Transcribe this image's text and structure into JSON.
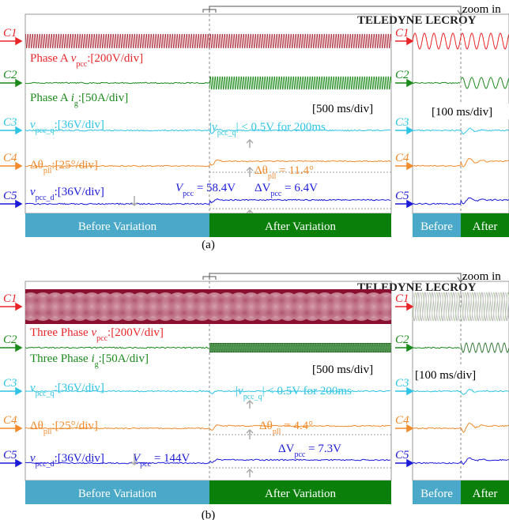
{
  "panels": [
    {
      "caption": "(a)",
      "zoom_label": "zoom in",
      "brand": "TELEDYNE LECROY",
      "timebase": "[500 ms/div]",
      "zoom_timebase": "[100 ms/div]",
      "phases": {
        "before": "Before Variation",
        "after": "After Variation",
        "zoom_before": "Before",
        "zoom_after": "After"
      },
      "channels": [
        {
          "name": "C1",
          "color": "#e8262a",
          "label": [
            {
              "text": "Phase A ",
              "style": "normal"
            },
            {
              "text": "v",
              "style": "italic"
            },
            {
              "text": "pcc",
              "style": "sub"
            },
            {
              "text": ":[200V/div]",
              "style": "normal"
            }
          ]
        },
        {
          "name": "C2",
          "color": "#1a8a1a",
          "label": [
            {
              "text": "Phase A ",
              "style": "normal"
            },
            {
              "text": "i",
              "style": "italic"
            },
            {
              "text": "g",
              "style": "sub"
            },
            {
              "text": ":[50A/div]",
              "style": "normal"
            }
          ]
        },
        {
          "name": "C3",
          "color": "#2ec4e6",
          "label": [
            {
              "text": "v",
              "style": "italic"
            },
            {
              "text": "pcc_q",
              "style": "sub"
            },
            {
              "text": ":[36V/div]",
              "style": "normal"
            }
          ]
        },
        {
          "name": "C4",
          "color": "#f08a2a",
          "label": [
            {
              "text": "Δθ",
              "style": "normal"
            },
            {
              "text": "pll",
              "style": "sub"
            },
            {
              "text": ":[25°/div]",
              "style": "normal"
            }
          ]
        },
        {
          "name": "C5",
          "color": "#1a1ad8",
          "label": [
            {
              "text": "v",
              "style": "italic"
            },
            {
              "text": "pcc_d",
              "style": "sub"
            },
            {
              "text": ":[36V/div]",
              "style": "normal"
            }
          ]
        }
      ],
      "annotations": [
        {
          "color": "#2ec4e6",
          "text": [
            {
              "text": "|",
              "style": "normal"
            },
            {
              "text": "v",
              "style": "italic"
            },
            {
              "text": "pcc_q",
              "style": "sub"
            },
            {
              "text": "| < 0.5V for 200ms",
              "style": "normal"
            }
          ]
        },
        {
          "color": "#f08a2a",
          "text": [
            {
              "text": "Δθ",
              "style": "normal"
            },
            {
              "text": "pll",
              "style": "sub"
            },
            {
              "text": " = 11.4°",
              "style": "normal"
            }
          ]
        },
        {
          "color": "#1a1ad8",
          "text": [
            {
              "text": "V",
              "style": "italic"
            },
            {
              "text": "pcc",
              "style": "sub"
            },
            {
              "text": " = 58.4V",
              "style": "normal"
            }
          ]
        },
        {
          "color": "#1a1ad8",
          "text": [
            {
              "text": "ΔV",
              "style": "normal"
            },
            {
              "text": "pcc",
              "style": "sub"
            },
            {
              "text": " = 6.4V",
              "style": "normal"
            }
          ]
        }
      ]
    },
    {
      "caption": "(b)",
      "zoom_label": "zoom in",
      "brand": "TELEDYNE LECROY",
      "timebase": "[500 ms/div]",
      "zoom_timebase": "[100 ms/div]",
      "phases": {
        "before": "Before Variation",
        "after": "After Variation",
        "zoom_before": "Before",
        "zoom_after": "After"
      },
      "channels": [
        {
          "name": "C1",
          "color": "#e8262a",
          "label": [
            {
              "text": "Three Phase ",
              "style": "normal"
            },
            {
              "text": "v",
              "style": "italic"
            },
            {
              "text": "pcc",
              "style": "sub"
            },
            {
              "text": ":[200V/div]",
              "style": "normal"
            }
          ]
        },
        {
          "name": "C2",
          "color": "#1a8a1a",
          "label": [
            {
              "text": "Three Phase ",
              "style": "normal"
            },
            {
              "text": "i",
              "style": "italic"
            },
            {
              "text": "g",
              "style": "sub"
            },
            {
              "text": ":[50A/div]",
              "style": "normal"
            }
          ]
        },
        {
          "name": "C3",
          "color": "#2ec4e6",
          "label": [
            {
              "text": "v",
              "style": "italic"
            },
            {
              "text": "pcc_q",
              "style": "sub"
            },
            {
              "text": ":[36V/div]",
              "style": "normal"
            }
          ]
        },
        {
          "name": "C4",
          "color": "#f08a2a",
          "label": [
            {
              "text": "Δθ",
              "style": "normal"
            },
            {
              "text": "pll",
              "style": "sub"
            },
            {
              "text": ":[25°/div]",
              "style": "normal"
            }
          ]
        },
        {
          "name": "C5",
          "color": "#1a1ad8",
          "label": [
            {
              "text": "v",
              "style": "italic"
            },
            {
              "text": "pcc_d",
              "style": "sub"
            },
            {
              "text": ":[36V/div]",
              "style": "normal"
            }
          ]
        }
      ],
      "annotations": [
        {
          "color": "#2ec4e6",
          "text": [
            {
              "text": "|",
              "style": "normal"
            },
            {
              "text": "v",
              "style": "italic"
            },
            {
              "text": "pcc_q",
              "style": "sub"
            },
            {
              "text": "| < 0.5V for 200ms",
              "style": "normal"
            }
          ]
        },
        {
          "color": "#f08a2a",
          "text": [
            {
              "text": "Δθ",
              "style": "normal"
            },
            {
              "text": "pll",
              "style": "sub"
            },
            {
              "text": " = 4.4°",
              "style": "normal"
            }
          ]
        },
        {
          "color": "#1a1ad8",
          "text": [
            {
              "text": "V",
              "style": "italic"
            },
            {
              "text": "pcc",
              "style": "sub"
            },
            {
              "text": " = 144V",
              "style": "normal"
            }
          ]
        },
        {
          "color": "#1a1ad8",
          "text": [
            {
              "text": "ΔV",
              "style": "normal"
            },
            {
              "text": "pcc",
              "style": "sub"
            },
            {
              "text": " = 7.3V",
              "style": "normal"
            }
          ]
        }
      ]
    }
  ]
}
